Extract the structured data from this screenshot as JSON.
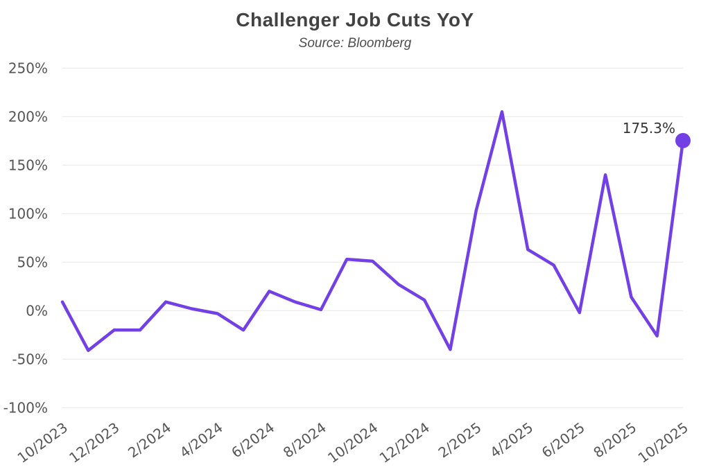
{
  "title": "Challenger Job Cuts YoY",
  "subtitle": "Source: Bloomberg",
  "chart_data": {
    "type": "line",
    "x": [
      "10/2023",
      "11/2023",
      "12/2023",
      "1/2024",
      "2/2024",
      "3/2024",
      "4/2024",
      "5/2024",
      "6/2024",
      "7/2024",
      "8/2024",
      "9/2024",
      "10/2024",
      "11/2024",
      "12/2024",
      "1/2025",
      "2/2025",
      "3/2025",
      "4/2025",
      "5/2025",
      "6/2025",
      "7/2025",
      "8/2025",
      "9/2025",
      "10/2025"
    ],
    "values": [
      9,
      -41,
      -20,
      -20,
      9,
      2,
      -3,
      -20,
      20,
      9,
      1,
      53,
      51,
      27,
      11,
      -40,
      103,
      205,
      63,
      47,
      -2,
      140,
      14,
      -26,
      175.3
    ],
    "xtick_labels": [
      "10/2023",
      "12/2023",
      "2/2024",
      "4/2024",
      "6/2024",
      "8/2024",
      "10/2024",
      "12/2024",
      "2/2025",
      "4/2025",
      "6/2025",
      "8/2025",
      "10/2025"
    ],
    "xtick_every": 2,
    "ytick_labels": [
      "250%",
      "200%",
      "150%",
      "100%",
      "50%",
      "0%",
      "-50%",
      "-100%"
    ],
    "yticks": [
      250,
      200,
      150,
      100,
      50,
      0,
      -50,
      -100
    ],
    "ylim": [
      -100,
      250
    ],
    "grid": true,
    "legend": false,
    "line_color": "#7240e4",
    "marker_color": "#7240e4",
    "grid_color": "#e7e7e7",
    "label_color": "#555555",
    "title_color": "#424242",
    "annotation": {
      "text": "175.3%",
      "color": "#333333"
    }
  }
}
